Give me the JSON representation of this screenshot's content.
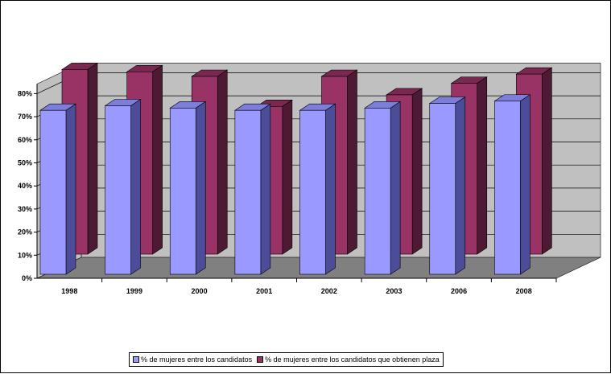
{
  "chart_data": {
    "type": "bar",
    "categories": [
      "1998",
      "1999",
      "2000",
      "2001",
      "2002",
      "2003",
      "2006",
      "2008"
    ],
    "series": [
      {
        "name": "% de mujeres entre los candidatos",
        "values": [
          71,
          73,
          72,
          71,
          71,
          72,
          74,
          75
        ]
      },
      {
        "name": "% de mujeres entre los candidatos que obtienen plaza",
        "values": [
          80,
          79,
          77,
          64,
          77,
          69,
          74,
          78
        ]
      }
    ],
    "y_ticks": [
      "0%",
      "10%",
      "20%",
      "30%",
      "40%",
      "50%",
      "60%",
      "70%",
      "80%"
    ],
    "ylim": [
      0,
      80
    ],
    "grid": true,
    "legend_position": "bottom",
    "colors": {
      "series1_front": "#9999FF",
      "series1_side": "#4C4C99",
      "series1_top": "#7D7DDB",
      "series2_front": "#993366",
      "series2_side": "#4D1A33",
      "series2_top": "#7A284F",
      "wall": "#C0C0C0",
      "floor": "#808080",
      "gridline": "#000000"
    }
  }
}
